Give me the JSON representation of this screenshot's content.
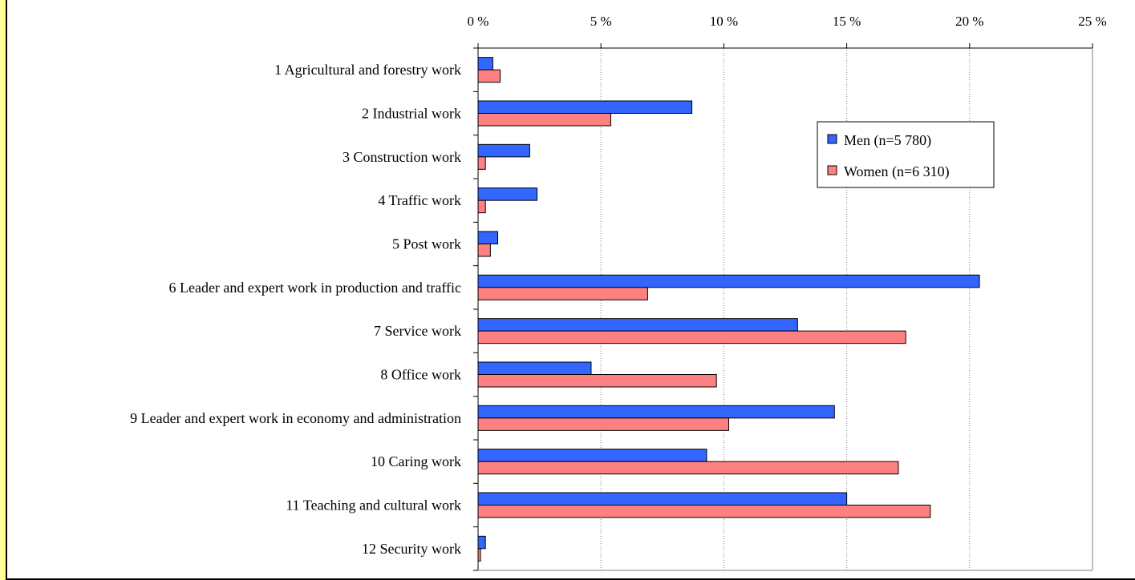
{
  "chart_data": {
    "type": "bar",
    "orientation": "horizontal",
    "categories": [
      "1 Agricultural and forestry work",
      "2 Industrial work",
      "3 Construction work",
      "4 Traffic work",
      "5 Post work",
      "6 Leader and expert work in production and traffic",
      "7 Service work",
      "8 Office work",
      "9 Leader and expert work in economy and administration",
      "10 Caring work",
      "11 Teaching and cultural work",
      "12 Security work"
    ],
    "series": [
      {
        "name": "Men (n=5 780)",
        "color": "#3366ff",
        "values": [
          0.6,
          8.7,
          2.1,
          2.4,
          0.8,
          20.4,
          13.0,
          4.6,
          14.5,
          9.3,
          15.0,
          0.3
        ]
      },
      {
        "name": "Women (n=6 310)",
        "color": "#ff8080",
        "values": [
          0.9,
          5.4,
          0.3,
          0.3,
          0.5,
          6.9,
          17.4,
          9.7,
          10.2,
          17.1,
          18.4,
          0.1
        ]
      }
    ],
    "x_ticks": [
      "0 %",
      "5 %",
      "10 %",
      "15 %",
      "20 %",
      "25 %"
    ],
    "xlim": [
      0,
      25
    ],
    "axis_position": "top",
    "grid": "vertical-dotted",
    "legend_position": "right",
    "title": "",
    "xlabel": "",
    "ylabel": ""
  }
}
